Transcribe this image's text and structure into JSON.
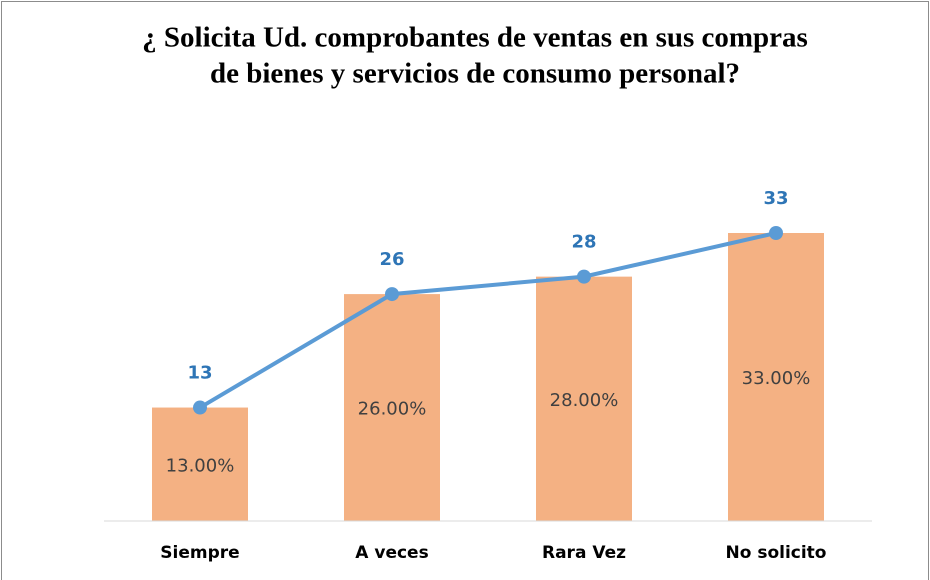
{
  "chart_data": {
    "type": "combo",
    "title": [
      "¿ Solicita Ud. comprobantes de ventas en sus compras",
      "de bienes y servicios de consumo personal?"
    ],
    "categories": [
      "Siempre",
      "A veces",
      "Rara Vez",
      "No solicito"
    ],
    "series": [
      {
        "type": "bar",
        "color": "#f4b183",
        "values": [
          13,
          26,
          28,
          33
        ],
        "value_labels": [
          "13.00%",
          "26.00%",
          "28.00%",
          "33.00%"
        ]
      },
      {
        "type": "line",
        "color": "#5b9bd5",
        "values": [
          13,
          26,
          28,
          33
        ]
      }
    ]
  }
}
